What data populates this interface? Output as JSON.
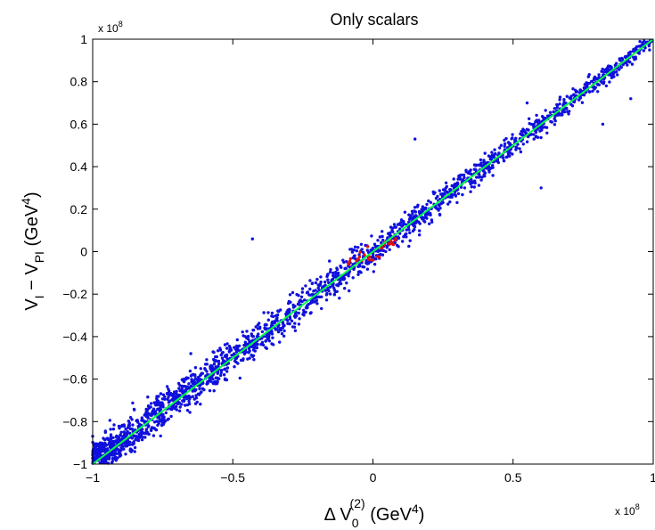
{
  "chart_data": {
    "type": "scatter",
    "title": "Only scalars",
    "xlabel": {
      "main": "Δ V",
      "sub": "0",
      "sup": "(2)",
      "unit": " (GeV",
      "unit_sup": "4",
      "close": ")"
    },
    "ylabel": {
      "v1": "V",
      "sub1": "I",
      "dash": " − V",
      "sub2": "PI",
      "unit": " (GeV",
      "unit_sup": "4",
      "close": ")"
    },
    "x_multiplier": {
      "base": "x 10",
      "exp": "8"
    },
    "y_multiplier": {
      "base": "x 10",
      "exp": "8"
    },
    "xlim": [
      -1,
      1
    ],
    "ylim": [
      -1,
      1
    ],
    "x_ticks": [
      -1,
      -0.5,
      0,
      0.5,
      1
    ],
    "x_tick_labels": [
      "−1",
      "−0.5",
      "0",
      "0.5",
      "1"
    ],
    "y_ticks": [
      -1,
      -0.8,
      -0.6,
      -0.4,
      -0.2,
      0,
      0.2,
      0.4,
      0.6,
      0.8,
      1
    ],
    "y_tick_labels": [
      "−1",
      "−0.8",
      "−0.6",
      "−0.4",
      "−0.2",
      "0",
      "0.2",
      "0.4",
      "0.6",
      "0.8",
      "1"
    ],
    "grid": false,
    "series": [
      {
        "color": "#1010dd",
        "marker": "dot",
        "count": 2200,
        "trend": "y ≈ x, scatter widening toward x = −1"
      },
      {
        "color": "#dd1010",
        "marker": "dot",
        "count": 28,
        "region": "near origin"
      }
    ],
    "fit_line": {
      "color": "#00ff44",
      "slope": 1,
      "intercept": 0,
      "from": -1,
      "to": 1
    },
    "outliers": [
      {
        "x": -0.43,
        "y": 0.06
      },
      {
        "x": 0.15,
        "y": 0.53
      },
      {
        "x": 0.6,
        "y": 0.3
      },
      {
        "x": 0.55,
        "y": 0.7
      },
      {
        "x": -0.65,
        "y": -0.48
      },
      {
        "x": 0.82,
        "y": 0.6
      },
      {
        "x": 0.92,
        "y": 0.72
      }
    ]
  }
}
